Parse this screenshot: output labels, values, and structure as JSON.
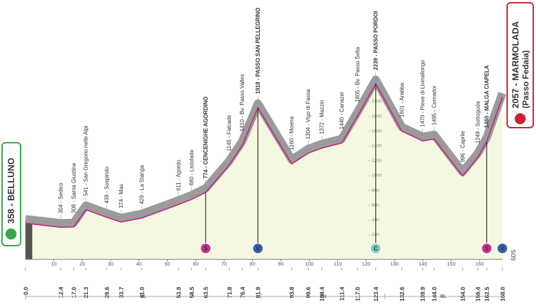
{
  "chart_data": {
    "type": "profile",
    "x": [
      {
        "value": 0,
        "label": "0.0"
      },
      12.4,
      {
        "value": 17,
        "label": "17.0"
      },
      21.3,
      28.6,
      33.7,
      {
        "value": 41,
        "label": "41.0"
      },
      53.9,
      58.5,
      63.5,
      71.8,
      76.4,
      81.9,
      93.8,
      99.6,
      104.4,
      111.4,
      {
        "value": 117,
        "label": "117.0"
      },
      123.4,
      132.6,
      139.9,
      {
        "value": 144,
        "label": "144.0"
      },
      {
        "value": 154,
        "label": "154.0"
      },
      159.4,
      162.5,
      {
        "value": 168,
        "label": "168.0"
      }
    ],
    "values": [
      358,
      304,
      308,
      541,
      439,
      374,
      429,
      611,
      680,
      774,
      1145,
      1410,
      1918,
      1160,
      1304,
      1372,
      1440,
      1805,
      2239,
      1601,
      1470,
      1495,
      996,
      1249,
      1460,
      2057
    ],
    "names": [
      "358 - BELLUNO",
      "304 - Sedico",
      "308 - Santa Giustina",
      "541 - San Gregorio nelle Alpi",
      "439 - Sospirolo",
      "374 - Mas",
      "429 - La Stanga",
      "611 - Agordo",
      "680 - Listolade",
      "774 - CENCENIGHE AGORDINO",
      "1145 - Falcade",
      "1410 - Bv. Passo Valles",
      "1918 - PASSO SAN PELLEGRINO",
      "1160 - Moena",
      "1304 - Vigo di Fassa",
      "1372 - Mazzin",
      "1440 - Canazei",
      "1805 - Bv. Passo Sella",
      "2239 - PASSO PORDOI",
      "1601 - Arabba",
      "1470 - Pieve di Livinallongo",
      "1495 - Cernadoi",
      "996 - Caprile",
      "1249 - Sottoguda",
      "1460 - MALGA CIAPELA",
      "2057 - MARMOLADA"
    ],
    "finish_subtitle": "(Passo Fedaia)",
    "xlim": [
      0,
      168
    ],
    "ylim": [
      0,
      2500
    ],
    "xticks": [
      10,
      20,
      30,
      40,
      50,
      60,
      70,
      80,
      90,
      100,
      110,
      120,
      130,
      140,
      150,
      160
    ],
    "yticks": [
      200,
      400,
      600,
      800,
      1000,
      1200,
      1400,
      1600,
      1800,
      2000
    ],
    "markers": [
      {
        "km": 63.5,
        "label": "S",
        "color": "#c8338f"
      },
      {
        "km": 81.9,
        "label": "V",
        "color": "#3a5fa8"
      },
      {
        "km": 123.4,
        "label": "C",
        "color": "#7fcfc4"
      },
      {
        "km": 162.5,
        "label": "S",
        "color": "#c8338f"
      },
      {
        "km": 168,
        "label": "V",
        "color": "#3a5fa8"
      }
    ],
    "regions": [
      "BL",
      "TN",
      "BL"
    ],
    "note": "SDS",
    "line_color": "#c0267e",
    "fill_color": "#f6f7e1",
    "shade_color": "#9b9b9b",
    "start_color": "#3aa64a",
    "finish_color": "#d0222e"
  }
}
